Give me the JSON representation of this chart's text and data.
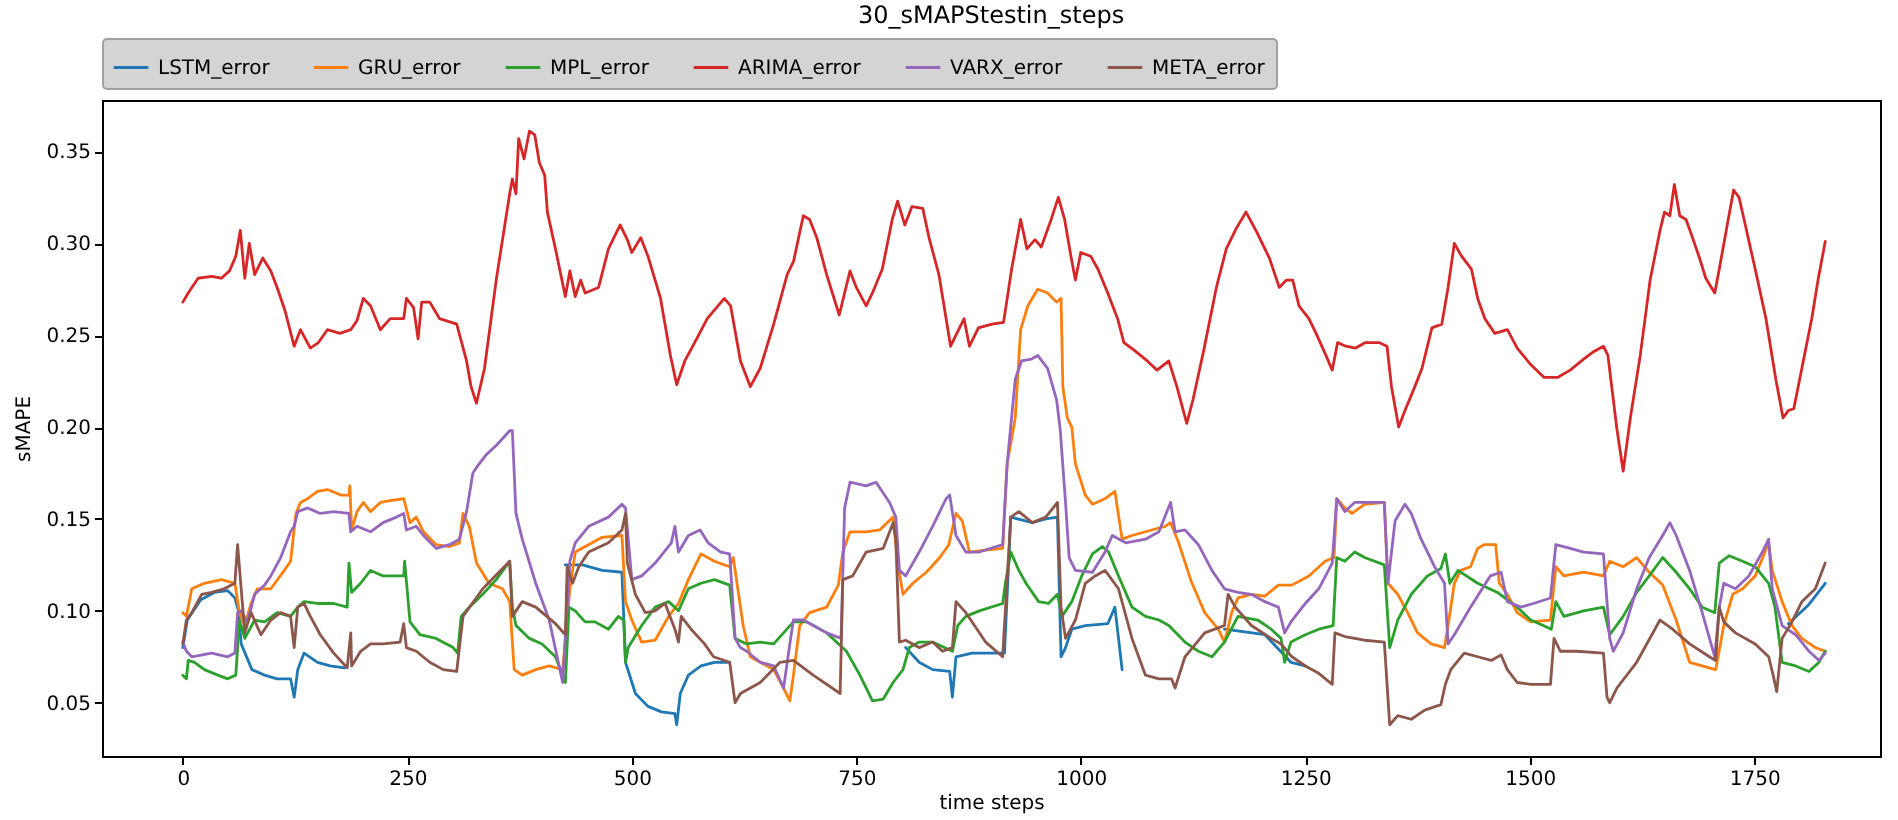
{
  "chart_data": {
    "type": "line",
    "title": "30_sMAPStestin_steps",
    "xlabel": "time steps",
    "ylabel": "sMAPE",
    "xlim": [
      -90,
      1890
    ],
    "ylim": [
      0.021,
      0.378
    ],
    "xticks": [
      0,
      250,
      500,
      750,
      1000,
      1250,
      1500,
      1750
    ],
    "yticks": [
      0.05,
      {
        "value": 0.1,
        "label": "0.10"
      },
      0.15,
      {
        "value": 0.2,
        "label": "0.20"
      },
      0.25,
      {
        "value": 0.3,
        "label": "0.30"
      },
      0.35
    ],
    "legend": "top",
    "series": [
      {
        "name": "LSTM_error",
        "color": "#1f77b4",
        "x": [
          0,
          5,
          20,
          35,
          50,
          58,
          62,
          65,
          77,
          91,
          105,
          120,
          124,
          128,
          135,
          150,
          164,
          180,
          300,
          426,
          445,
          467,
          489,
          493,
          504,
          518,
          533,
          548,
          550,
          554,
          563,
          577,
          592,
          609,
          700,
          805,
          820,
          835,
          854,
          857,
          861,
          879,
          909,
          915,
          922,
          946,
          961,
          974,
          978,
          983,
          990,
          1005,
          1030,
          1038,
          1042,
          1046,
          1100,
          1160,
          1205,
          1234,
          1250,
          1500,
          1788,
          1810,
          1829
        ],
        "values": [
          0.08,
          0.095,
          0.106,
          0.11,
          0.111,
          0.107,
          0.1,
          0.082,
          0.068,
          0.065,
          0.063,
          0.063,
          0.053,
          0.068,
          0.077,
          0.072,
          0.07,
          0.069,
          null,
          0.125,
          0.125,
          0.122,
          0.121,
          0.072,
          0.055,
          0.048,
          0.045,
          0.044,
          0.038,
          0.055,
          0.065,
          0.07,
          0.072,
          0.072,
          null,
          0.08,
          0.072,
          0.068,
          0.067,
          0.053,
          0.075,
          0.077,
          0.077,
          0.077,
          0.151,
          0.148,
          0.15,
          0.151,
          0.075,
          0.08,
          0.09,
          0.092,
          0.093,
          0.102,
          0.085,
          0.068,
          null,
          0.09,
          0.087,
          0.072,
          0.07,
          null,
          0.093,
          0.103,
          0.115
        ]
      },
      {
        "name": "GRU_error",
        "color": "#ff7f0e",
        "x": [
          0,
          4,
          10,
          24,
          43,
          58,
          63,
          69,
          76,
          83,
          98,
          113,
          120,
          126,
          131,
          139,
          150,
          161,
          176,
          185,
          186,
          188,
          194,
          201,
          209,
          220,
          231,
          246,
          253,
          260,
          268,
          282,
          297,
          308,
          312,
          319,
          327,
          341,
          356,
          364,
          369,
          378,
          393,
          408,
          423,
          431,
          437,
          467,
          489,
          493,
          500,
          511,
          526,
          541,
          552,
          563,
          577,
          592,
          609,
          613,
          624,
          632,
          643,
          658,
          669,
          676,
          680,
          687,
          698,
          717,
          730,
          735,
          743,
          761,
          776,
          791,
          796,
          802,
          813,
          828,
          843,
          853,
          861,
          868,
          876,
          894,
          913,
          918,
          927,
          933,
          941,
          952,
          963,
          973,
          978,
          980,
          985,
          990,
          994,
          1005,
          1013,
          1027,
          1038,
          1046,
          1057,
          1079,
          1094,
          1100,
          1109,
          1123,
          1138,
          1153,
          1160,
          1168,
          1175,
          1190,
          1205,
          1220,
          1235,
          1254,
          1272,
          1282,
          1285,
          1294,
          1302,
          1316,
          1338,
          1342,
          1353,
          1364,
          1375,
          1390,
          1405,
          1409,
          1416,
          1423,
          1434,
          1442,
          1449,
          1462,
          1466,
          1475,
          1486,
          1501,
          1523,
          1529,
          1538,
          1560,
          1582,
          1589,
          1604,
          1619,
          1633,
          1648,
          1663,
          1678,
          1692,
          1707,
          1716,
          1726,
          1737,
          1751,
          1766,
          1770,
          1781,
          1792,
          1803,
          1818,
          1829
        ],
        "values": [
          0.099,
          0.097,
          0.112,
          0.115,
          0.117,
          0.115,
          0.099,
          0.092,
          0.104,
          0.112,
          0.112,
          0.122,
          0.127,
          0.153,
          0.159,
          0.161,
          0.165,
          0.166,
          0.163,
          0.163,
          0.168,
          0.144,
          0.154,
          0.159,
          0.154,
          0.159,
          0.16,
          0.161,
          0.148,
          0.151,
          0.143,
          0.136,
          0.135,
          0.137,
          0.153,
          0.146,
          0.126,
          0.115,
          0.112,
          0.105,
          0.068,
          0.065,
          0.068,
          0.07,
          0.068,
          0.112,
          0.132,
          0.14,
          0.141,
          0.105,
          0.095,
          0.083,
          0.084,
          0.097,
          0.104,
          0.117,
          0.131,
          0.127,
          0.124,
          0.129,
          0.092,
          0.075,
          0.072,
          0.068,
          0.058,
          0.051,
          0.065,
          0.092,
          0.099,
          0.102,
          0.114,
          0.132,
          0.143,
          0.143,
          0.144,
          0.151,
          0.126,
          0.109,
          0.115,
          0.121,
          0.129,
          0.136,
          0.153,
          0.149,
          0.132,
          0.133,
          0.134,
          0.18,
          0.205,
          0.253,
          0.266,
          0.275,
          0.273,
          0.268,
          0.27,
          0.222,
          0.205,
          0.2,
          0.18,
          0.163,
          0.158,
          0.161,
          0.165,
          0.139,
          0.141,
          0.144,
          0.146,
          0.148,
          0.137,
          0.116,
          0.099,
          0.09,
          0.083,
          0.099,
          0.107,
          0.109,
          0.108,
          0.114,
          0.114,
          0.119,
          0.127,
          0.129,
          0.161,
          0.156,
          0.153,
          0.158,
          0.159,
          0.115,
          0.109,
          0.099,
          0.088,
          0.082,
          0.08,
          0.092,
          0.115,
          0.122,
          0.124,
          0.134,
          0.136,
          0.136,
          0.115,
          0.109,
          0.099,
          0.094,
          0.095,
          0.124,
          0.119,
          0.121,
          0.119,
          0.127,
          0.124,
          0.129,
          0.121,
          0.114,
          0.095,
          0.072,
          0.07,
          0.068,
          0.092,
          0.109,
          0.112,
          0.119,
          0.137,
          0.122,
          0.105,
          0.092,
          0.085,
          0.08,
          0.078
        ]
      },
      {
        "name": "MPL_error",
        "color": "#2ca02c",
        "x": [
          0,
          4,
          6,
          13,
          24,
          39,
          50,
          59,
          63,
          69,
          80,
          91,
          105,
          120,
          128,
          135,
          150,
          168,
          183,
          185,
          188,
          198,
          209,
          223,
          246,
          247,
          253,
          264,
          282,
          301,
          306,
          310,
          319,
          334,
          349,
          364,
          367,
          371,
          386,
          400,
          415,
          426,
          430,
          437,
          448,
          459,
          474,
          485,
          491,
          493,
          496,
          511,
          526,
          541,
          552,
          563,
          577,
          592,
          609,
          615,
          628,
          643,
          658,
          680,
          695,
          717,
          739,
          754,
          768,
          780,
          791,
          802,
          809,
          820,
          835,
          857,
          863,
          872,
          887,
          913,
          916,
          922,
          931,
          939,
          953,
          964,
          974,
          979,
          990,
          1001,
          1013,
          1024,
          1031,
          1042,
          1057,
          1072,
          1087,
          1098,
          1116,
          1131,
          1146,
          1160,
          1175,
          1197,
          1212,
          1223,
          1227,
          1234,
          1250,
          1265,
          1281,
          1285,
          1294,
          1305,
          1316,
          1338,
          1344,
          1353,
          1368,
          1386,
          1401,
          1406,
          1411,
          1420,
          1442,
          1464,
          1486,
          1501,
          1515,
          1524,
          1529,
          1538,
          1560,
          1582,
          1589,
          1604,
          1619,
          1633,
          1648,
          1663,
          1678,
          1692,
          1706,
          1711,
          1722,
          1737,
          1751,
          1766,
          1773,
          1781,
          1796,
          1811,
          1822,
          1829
        ],
        "values": [
          0.065,
          0.063,
          0.073,
          0.072,
          0.068,
          0.065,
          0.063,
          0.065,
          0.095,
          0.085,
          0.095,
          0.094,
          0.099,
          0.097,
          0.102,
          0.105,
          0.104,
          0.104,
          0.102,
          0.126,
          0.11,
          0.115,
          0.122,
          0.119,
          0.119,
          0.127,
          0.094,
          0.087,
          0.085,
          0.08,
          0.077,
          0.097,
          0.102,
          0.109,
          0.117,
          0.127,
          0.102,
          0.092,
          0.085,
          0.082,
          0.075,
          0.061,
          0.102,
          0.1,
          0.094,
          0.094,
          0.09,
          0.097,
          0.095,
          0.072,
          0.08,
          0.092,
          0.102,
          0.105,
          0.1,
          0.112,
          0.115,
          0.117,
          0.114,
          0.085,
          0.082,
          0.083,
          0.082,
          0.094,
          0.094,
          0.088,
          0.078,
          0.065,
          0.051,
          0.052,
          0.061,
          0.068,
          0.08,
          0.083,
          0.083,
          0.078,
          0.092,
          0.097,
          0.1,
          0.104,
          0.115,
          0.132,
          0.122,
          0.115,
          0.105,
          0.104,
          0.109,
          0.097,
          0.105,
          0.119,
          0.131,
          0.135,
          0.132,
          0.119,
          0.102,
          0.097,
          0.095,
          0.092,
          0.083,
          0.078,
          0.075,
          0.083,
          0.097,
          0.095,
          0.09,
          0.085,
          0.072,
          0.083,
          0.087,
          0.09,
          0.092,
          0.129,
          0.127,
          0.132,
          0.129,
          0.125,
          0.08,
          0.095,
          0.109,
          0.119,
          0.123,
          0.131,
          0.115,
          0.122,
          0.115,
          0.11,
          0.102,
          0.095,
          0.092,
          0.09,
          0.105,
          0.097,
          0.1,
          0.102,
          0.087,
          0.097,
          0.11,
          0.119,
          0.129,
          0.121,
          0.112,
          0.102,
          0.099,
          0.126,
          0.13,
          0.127,
          0.124,
          0.115,
          0.102,
          0.072,
          0.07,
          0.067,
          0.072,
          0.078
        ]
      },
      {
        "name": "ARIMA_error",
        "color": "#d62728",
        "x": [
          0,
          6,
          17,
          32,
          43,
          52,
          59,
          64,
          69,
          74,
          80,
          89,
          98,
          105,
          114,
          124,
          131,
          142,
          151,
          161,
          175,
          187,
          194,
          201,
          209,
          220,
          231,
          246,
          249,
          257,
          262,
          266,
          275,
          286,
          305,
          316,
          321,
          327,
          336,
          349,
          364,
          367,
          371,
          374,
          380,
          386,
          392,
          397,
          403,
          406,
          415,
          426,
          431,
          437,
          443,
          448,
          463,
          474,
          487,
          495,
          500,
          510,
          518,
          532,
          543,
          550,
          559,
          570,
          584,
          603,
          610,
          621,
          632,
          643,
          658,
          673,
          680,
          691,
          698,
          706,
          717,
          731,
          743,
          750,
          761,
          768,
          779,
          790,
          796,
          804,
          812,
          824,
          831,
          842,
          855,
          864,
          870,
          876,
          886,
          901,
          914,
          923,
          933,
          940,
          949,
          956,
          967,
          975,
          982,
          989,
          994,
          1000,
          1011,
          1019,
          1030,
          1041,
          1048,
          1059,
          1074,
          1085,
          1098,
          1107,
          1118,
          1125,
          1137,
          1151,
          1162,
          1173,
          1184,
          1195,
          1210,
          1221,
          1229,
          1236,
          1243,
          1254,
          1262,
          1273,
          1280,
          1286,
          1295,
          1306,
          1317,
          1332,
          1341,
          1346,
          1354,
          1361,
          1372,
          1380,
          1391,
          1402,
          1409,
          1416,
          1424,
          1435,
          1442,
          1450,
          1461,
          1475,
          1486,
          1501,
          1516,
          1531,
          1545,
          1560,
          1571,
          1582,
          1587,
          1593,
          1597,
          1604,
          1612,
          1623,
          1634,
          1645,
          1650,
          1656,
          1661,
          1667,
          1674,
          1682,
          1689,
          1696,
          1706,
          1711,
          1721,
          1727,
          1733,
          1740,
          1751,
          1763,
          1774,
          1782,
          1788,
          1794,
          1803,
          1814,
          1821,
          1829
        ],
        "values": [
          0.268,
          0.273,
          0.281,
          0.282,
          0.281,
          0.285,
          0.293,
          0.307,
          0.281,
          0.3,
          0.283,
          0.292,
          0.285,
          0.276,
          0.263,
          0.244,
          0.253,
          0.243,
          0.246,
          0.253,
          0.251,
          0.253,
          0.258,
          0.27,
          0.266,
          0.253,
          0.259,
          0.259,
          0.27,
          0.265,
          0.248,
          0.268,
          0.268,
          0.259,
          0.256,
          0.236,
          0.222,
          0.213,
          0.232,
          0.28,
          0.327,
          0.335,
          0.327,
          0.357,
          0.346,
          0.361,
          0.359,
          0.344,
          0.337,
          0.317,
          0.297,
          0.271,
          0.285,
          0.271,
          0.28,
          0.273,
          0.276,
          0.297,
          0.31,
          0.302,
          0.295,
          0.303,
          0.293,
          0.27,
          0.239,
          0.223,
          0.236,
          0.246,
          0.259,
          0.27,
          0.266,
          0.236,
          0.222,
          0.232,
          0.256,
          0.283,
          0.29,
          0.315,
          0.313,
          0.303,
          0.283,
          0.261,
          0.285,
          0.276,
          0.266,
          0.273,
          0.286,
          0.313,
          0.323,
          0.31,
          0.32,
          0.319,
          0.303,
          0.283,
          0.244,
          0.253,
          0.259,
          0.244,
          0.254,
          0.256,
          0.257,
          0.286,
          0.313,
          0.297,
          0.302,
          0.298,
          0.313,
          0.325,
          0.313,
          0.293,
          0.28,
          0.295,
          0.293,
          0.286,
          0.273,
          0.259,
          0.246,
          0.242,
          0.236,
          0.231,
          0.236,
          0.222,
          0.202,
          0.215,
          0.242,
          0.276,
          0.297,
          0.308,
          0.317,
          0.307,
          0.292,
          0.276,
          0.28,
          0.28,
          0.266,
          0.259,
          0.251,
          0.239,
          0.231,
          0.246,
          0.244,
          0.243,
          0.246,
          0.246,
          0.244,
          0.222,
          0.2,
          0.209,
          0.222,
          0.232,
          0.254,
          0.256,
          0.276,
          0.3,
          0.293,
          0.286,
          0.27,
          0.259,
          0.251,
          0.253,
          0.243,
          0.234,
          0.227,
          0.227,
          0.231,
          0.237,
          0.241,
          0.244,
          0.239,
          0.215,
          0.199,
          0.176,
          0.205,
          0.239,
          0.28,
          0.307,
          0.317,
          0.315,
          0.332,
          0.315,
          0.313,
          0.302,
          0.292,
          0.281,
          0.273,
          0.286,
          0.313,
          0.329,
          0.325,
          0.31,
          0.286,
          0.259,
          0.226,
          0.205,
          0.209,
          0.21,
          0.232,
          0.259,
          0.28,
          0.301
        ]
      },
      {
        "name": "VARX_error",
        "color": "#9467bd",
        "x": [
          0,
          4,
          10,
          32,
          50,
          58,
          61,
          65,
          72,
          80,
          91,
          98,
          109,
          120,
          124,
          128,
          139,
          153,
          168,
          185,
          187,
          194,
          209,
          223,
          238,
          246,
          249,
          260,
          268,
          282,
          297,
          308,
          316,
          323,
          330,
          338,
          349,
          364,
          367,
          371,
          378,
          393,
          408,
          423,
          431,
          437,
          452,
          474,
          489,
          493,
          500,
          511,
          526,
          544,
          548,
          552,
          563,
          576,
          585,
          599,
          609,
          615,
          621,
          628,
          643,
          658,
          669,
          676,
          680,
          691,
          702,
          717,
          733,
          737,
          743,
          761,
          772,
          787,
          794,
          798,
          805,
          820,
          835,
          850,
          854,
          861,
          872,
          887,
          913,
          918,
          927,
          934,
          945,
          952,
          963,
          973,
          977,
          983,
          987,
          994,
          1013,
          1027,
          1035,
          1050,
          1072,
          1087,
          1100,
          1105,
          1116,
          1131,
          1146,
          1160,
          1175,
          1190,
          1205,
          1220,
          1227,
          1234,
          1250,
          1265,
          1280,
          1285,
          1294,
          1305,
          1324,
          1338,
          1342,
          1350,
          1361,
          1368,
          1379,
          1394,
          1405,
          1409,
          1416,
          1434,
          1456,
          1468,
          1475,
          1490,
          1504,
          1523,
          1529,
          1545,
          1560,
          1582,
          1589,
          1593,
          1604,
          1619,
          1633,
          1648,
          1656,
          1663,
          1678,
          1692,
          1706,
          1711,
          1716,
          1729,
          1744,
          1759,
          1766,
          1770,
          1781,
          1796,
          1811,
          1822,
          1829
        ],
        "values": [
          0.083,
          0.078,
          0.075,
          0.077,
          0.075,
          0.077,
          0.099,
          0.1,
          0.094,
          0.109,
          0.114,
          0.119,
          0.129,
          0.143,
          0.146,
          0.154,
          0.156,
          0.153,
          0.154,
          0.153,
          0.143,
          0.146,
          0.143,
          0.148,
          0.151,
          0.153,
          0.144,
          0.146,
          0.141,
          0.134,
          0.136,
          0.139,
          0.154,
          0.175,
          0.18,
          0.185,
          0.19,
          0.198,
          0.198,
          0.153,
          0.139,
          0.115,
          0.095,
          0.061,
          0.127,
          0.137,
          0.146,
          0.151,
          0.158,
          0.156,
          0.117,
          0.119,
          0.126,
          0.137,
          0.146,
          0.132,
          0.141,
          0.144,
          0.137,
          0.132,
          0.131,
          0.085,
          0.08,
          0.078,
          0.072,
          0.07,
          0.058,
          0.082,
          0.095,
          0.095,
          0.092,
          0.088,
          0.085,
          0.156,
          0.17,
          0.168,
          0.17,
          0.159,
          0.151,
          0.122,
          0.119,
          0.132,
          0.146,
          0.161,
          0.163,
          0.141,
          0.132,
          0.132,
          0.136,
          0.18,
          0.226,
          0.236,
          0.237,
          0.239,
          0.232,
          0.215,
          0.199,
          0.159,
          0.129,
          0.122,
          0.121,
          0.132,
          0.141,
          0.137,
          0.139,
          0.143,
          0.159,
          0.143,
          0.144,
          0.136,
          0.122,
          0.112,
          0.11,
          0.109,
          0.105,
          0.102,
          0.088,
          0.094,
          0.104,
          0.112,
          0.126,
          0.161,
          0.154,
          0.159,
          0.159,
          0.159,
          0.115,
          0.149,
          0.158,
          0.153,
          0.139,
          0.124,
          0.115,
          0.082,
          0.087,
          0.102,
          0.119,
          0.121,
          0.105,
          0.102,
          0.104,
          0.107,
          0.136,
          0.134,
          0.132,
          0.131,
          0.085,
          0.078,
          0.088,
          0.112,
          0.129,
          0.141,
          0.148,
          0.141,
          0.122,
          0.099,
          0.075,
          0.102,
          0.115,
          0.112,
          0.119,
          0.132,
          0.139,
          0.112,
          0.092,
          0.087,
          0.078,
          0.073,
          0.077
        ]
      },
      {
        "name": "META_error",
        "color": "#8c564b",
        "x": [
          0,
          4,
          10,
          21,
          32,
          46,
          58,
          61,
          65,
          69,
          76,
          87,
          98,
          109,
          120,
          124,
          128,
          135,
          142,
          153,
          168,
          183,
          187,
          188,
          198,
          209,
          223,
          242,
          246,
          249,
          260,
          275,
          290,
          305,
          312,
          334,
          364,
          367,
          378,
          393,
          415,
          426,
          428,
          434,
          441,
          452,
          474,
          489,
          493,
          495,
          504,
          515,
          526,
          537,
          548,
          552,
          555,
          566,
          581,
          591,
          609,
          615,
          621,
          643,
          665,
          680,
          702,
          732,
          735,
          746,
          761,
          780,
          791,
          794,
          798,
          805,
          820,
          835,
          846,
          857,
          861,
          872,
          894,
          913,
          922,
          931,
          946,
          961,
          974,
          978,
          983,
          994,
          1005,
          1016,
          1027,
          1042,
          1057,
          1072,
          1087,
          1101,
          1105,
          1116,
          1138,
          1160,
          1164,
          1172,
          1190,
          1212,
          1223,
          1235,
          1250,
          1265,
          1280,
          1283,
          1294,
          1316,
          1338,
          1344,
          1353,
          1368,
          1383,
          1401,
          1406,
          1412,
          1427,
          1442,
          1457,
          1468,
          1475,
          1486,
          1501,
          1523,
          1527,
          1534,
          1552,
          1582,
          1586,
          1589,
          1597,
          1619,
          1645,
          1659,
          1678,
          1700,
          1707,
          1711,
          1716,
          1729,
          1751,
          1766,
          1771,
          1775,
          1781,
          1792,
          1803,
          1818,
          1829
        ],
        "values": [
          0.082,
          0.095,
          0.099,
          0.109,
          0.11,
          0.112,
          0.115,
          0.136,
          0.112,
          0.088,
          0.099,
          0.087,
          0.095,
          0.099,
          0.097,
          0.08,
          0.102,
          0.104,
          0.097,
          0.087,
          0.077,
          0.069,
          0.088,
          0.07,
          0.078,
          0.082,
          0.082,
          0.083,
          0.093,
          0.08,
          0.078,
          0.072,
          0.068,
          0.067,
          0.097,
          0.112,
          0.127,
          0.097,
          0.105,
          0.102,
          0.093,
          0.087,
          0.124,
          0.115,
          0.124,
          0.132,
          0.137,
          0.144,
          0.153,
          0.126,
          0.109,
          0.099,
          0.1,
          0.104,
          0.09,
          0.083,
          0.097,
          0.09,
          0.082,
          0.075,
          0.072,
          0.05,
          0.055,
          0.061,
          0.072,
          0.073,
          0.065,
          0.055,
          0.117,
          0.119,
          0.132,
          0.134,
          0.148,
          0.139,
          0.083,
          0.084,
          0.08,
          0.083,
          0.078,
          0.08,
          0.105,
          0.099,
          0.083,
          0.075,
          0.151,
          0.154,
          0.148,
          0.151,
          0.159,
          0.102,
          0.085,
          0.095,
          0.115,
          0.119,
          0.122,
          0.112,
          0.085,
          0.065,
          0.063,
          0.063,
          0.058,
          0.075,
          0.088,
          0.092,
          0.109,
          0.102,
          0.092,
          0.085,
          0.082,
          0.075,
          0.07,
          0.066,
          0.06,
          0.088,
          0.086,
          0.084,
          0.083,
          0.038,
          0.043,
          0.041,
          0.046,
          0.049,
          0.06,
          0.068,
          0.077,
          0.075,
          0.073,
          0.076,
          0.068,
          0.061,
          0.06,
          0.06,
          0.085,
          0.078,
          0.078,
          0.077,
          0.053,
          0.05,
          0.058,
          0.072,
          0.095,
          0.09,
          0.082,
          0.075,
          0.073,
          0.102,
          0.094,
          0.088,
          0.082,
          0.075,
          0.065,
          0.056,
          0.085,
          0.094,
          0.105,
          0.112,
          0.126
        ]
      }
    ]
  }
}
